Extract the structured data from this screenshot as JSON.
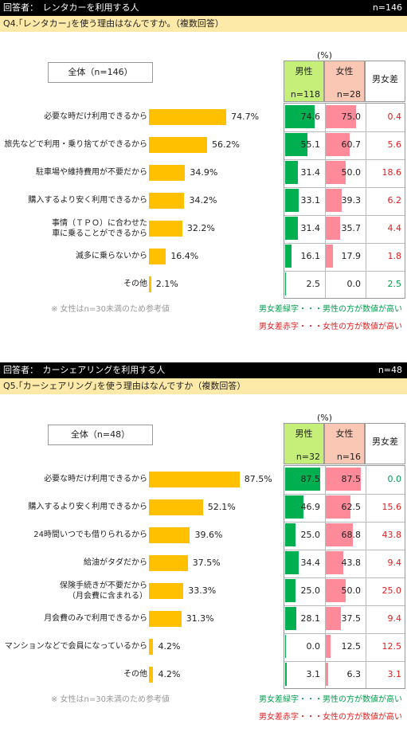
{
  "sections": [
    {
      "header_label": "回答者：　レンタカーを利用する人",
      "header_n": "n=146",
      "question": "Q4.｢レンタカー｣を使う理由はなんですか。（複数回答）",
      "all_label": "全体（n=146）",
      "unit": "(%)",
      "male_label": "男性",
      "male_n": "n=118",
      "female_label": "女性",
      "female_n": "n=28",
      "diff_label": "男女差",
      "note": "※ 女性はn=30未満のため参考値",
      "legend_green": "男女差緑字・・・男性の方が数値が高い",
      "legend_red": "男女差赤字・・・女性の方が数値が高い",
      "colors": {
        "total": "#ffc000",
        "male": "#00b050",
        "female": "#ff8b9a",
        "pos": "#00a050",
        "neg": "#e02020"
      },
      "chart_data": {
        "type": "bar",
        "categories": [
          [
            "必要な時だけ利用できるから"
          ],
          [
            "旅先などで利用・乗り捨てができるから"
          ],
          [
            "駐車場や維持費用が不要だから"
          ],
          [
            "購入するより安く利用できるから"
          ],
          [
            "事情（ＴＰＯ）に合わせた",
            "車に乗ることができるから"
          ],
          [
            "滅多に乗らないから"
          ],
          [
            "その他"
          ]
        ],
        "total": [
          "74.7%",
          "56.2%",
          "34.9%",
          "34.2%",
          "32.2%",
          "16.4%",
          "2.1%"
        ],
        "total_values": [
          74.7,
          56.2,
          34.9,
          34.2,
          32.2,
          16.4,
          2.1
        ],
        "male": [
          74.6,
          55.1,
          31.4,
          33.1,
          31.4,
          16.1,
          2.5
        ],
        "female": [
          75.0,
          60.7,
          50.0,
          39.3,
          35.7,
          17.9,
          0.0
        ],
        "diff": [
          0.4,
          5.6,
          18.6,
          6.2,
          4.4,
          1.8,
          2.5
        ],
        "diff_sign": [
          "neg",
          "neg",
          "neg",
          "neg",
          "neg",
          "neg",
          "pos"
        ]
      }
    },
    {
      "header_label": "回答者：　カーシェアリングを利用する人",
      "header_n": "n=48",
      "question": "Q5.｢カーシェアリング｣を使う理由はなんですか（複数回答）",
      "all_label": "全体（n=48）",
      "unit": "(%)",
      "male_label": "男性",
      "male_n": "n=32",
      "female_label": "女性",
      "female_n": "n=16",
      "diff_label": "男女差",
      "note": "※ 女性はn=30未満のため参考値",
      "legend_green": "男女差緑字・・・男性の方が数値が高い",
      "legend_red": "男女差赤字・・・女性の方が数値が高い",
      "colors": {
        "total": "#ffc000",
        "male": "#00b050",
        "female": "#ff8b9a",
        "pos": "#00a050",
        "neg": "#e02020"
      },
      "chart_data": {
        "type": "bar",
        "categories": [
          [
            "必要な時だけ利用できるから"
          ],
          [
            "購入するより安く利用できるから"
          ],
          [
            "24時間いつでも借りられるから"
          ],
          [
            "給油がタダだから"
          ],
          [
            "保険手続きが不要だから",
            "（月会費に含まれる）"
          ],
          [
            "月会費のみで利用できるから"
          ],
          [
            "マンションなどで会員になっているから"
          ],
          [
            "その他"
          ]
        ],
        "total": [
          "87.5%",
          "52.1%",
          "39.6%",
          "37.5%",
          "33.3%",
          "31.3%",
          "4.2%",
          "4.2%"
        ],
        "total_values": [
          87.5,
          52.1,
          39.6,
          37.5,
          33.3,
          31.3,
          4.2,
          4.2
        ],
        "male": [
          87.5,
          46.9,
          25.0,
          34.4,
          25.0,
          28.1,
          0.0,
          3.1
        ],
        "female": [
          87.5,
          62.5,
          68.8,
          43.8,
          50.0,
          37.5,
          12.5,
          6.3
        ],
        "diff": [
          0.0,
          15.6,
          43.8,
          9.4,
          25.0,
          9.4,
          12.5,
          3.1
        ],
        "diff_sign": [
          "pos",
          "neg",
          "neg",
          "neg",
          "neg",
          "neg",
          "neg",
          "neg"
        ]
      }
    }
  ]
}
